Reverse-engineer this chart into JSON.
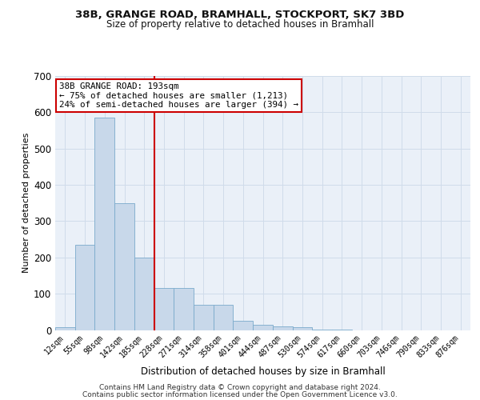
{
  "title1": "38B, GRANGE ROAD, BRAMHALL, STOCKPORT, SK7 3BD",
  "title2": "Size of property relative to detached houses in Bramhall",
  "xlabel": "Distribution of detached houses by size in Bramhall",
  "ylabel": "Number of detached properties",
  "footer1": "Contains HM Land Registry data © Crown copyright and database right 2024.",
  "footer2": "Contains public sector information licensed under the Open Government Licence v3.0.",
  "bar_labels": [
    "12sqm",
    "55sqm",
    "98sqm",
    "142sqm",
    "185sqm",
    "228sqm",
    "271sqm",
    "314sqm",
    "358sqm",
    "401sqm",
    "444sqm",
    "487sqm",
    "530sqm",
    "574sqm",
    "617sqm",
    "660sqm",
    "703sqm",
    "746sqm",
    "790sqm",
    "833sqm",
    "876sqm"
  ],
  "bar_values": [
    8,
    235,
    585,
    350,
    200,
    115,
    115,
    70,
    70,
    25,
    14,
    10,
    8,
    2,
    2,
    0,
    0,
    0,
    0,
    0,
    0
  ],
  "bar_color": "#c8d8ea",
  "bar_edgecolor": "#7aaacc",
  "grid_color": "#d0dcea",
  "background_color": "#eaf0f8",
  "annotation_text": "38B GRANGE ROAD: 193sqm\n← 75% of detached houses are smaller (1,213)\n24% of semi-detached houses are larger (394) →",
  "annotation_box_facecolor": "#ffffff",
  "annotation_box_edgecolor": "#cc0000",
  "red_line_color": "#cc0000",
  "ylim": [
    0,
    700
  ],
  "yticks": [
    0,
    100,
    200,
    300,
    400,
    500,
    600,
    700
  ]
}
